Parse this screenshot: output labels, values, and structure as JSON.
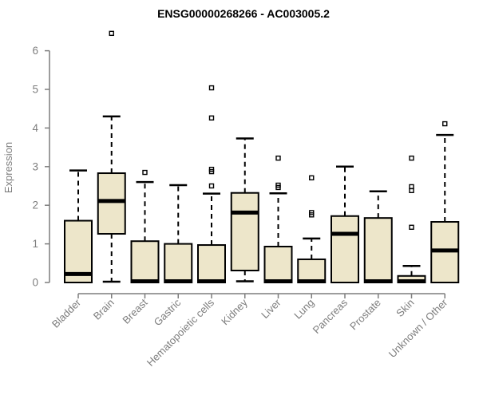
{
  "colors": {
    "box_fill": "#EDE6CA",
    "box_stroke": "#000000",
    "median": "#000000",
    "axis": "#7d7d7d",
    "tick_label": "#7d7d7d",
    "title": "#000000",
    "background": "#ffffff"
  },
  "chart_data": {
    "type": "boxplot",
    "title": "ENSG00000268266 - AC003005.2",
    "xlabel": "",
    "ylabel": "Expression",
    "ylim": [
      0,
      6
    ],
    "yticks": [
      0,
      1,
      2,
      3,
      4,
      5,
      6
    ],
    "grid": false,
    "legend": false,
    "categories": [
      "Bladder",
      "Brain",
      "Breast",
      "Gastric",
      "Hematopoietic cells",
      "Kidney",
      "Liver",
      "Lung",
      "Pancreas",
      "Prostate",
      "Skin",
      "Unknown / Other"
    ],
    "series": [
      {
        "name": "Bladder",
        "q1": 0,
        "median": 0.22,
        "q3": 1.6,
        "whisker_low": 0,
        "whisker_high": 2.9,
        "outliers": []
      },
      {
        "name": "Brain",
        "q1": 1.26,
        "median": 2.11,
        "q3": 2.83,
        "whisker_low": 0.02,
        "whisker_high": 4.3,
        "outliers": [
          6.45
        ]
      },
      {
        "name": "Breast",
        "q1": 0,
        "median": 0.03,
        "q3": 1.07,
        "whisker_low": 0,
        "whisker_high": 2.6,
        "outliers": [
          2.85
        ]
      },
      {
        "name": "Gastric",
        "q1": 0,
        "median": 0.03,
        "q3": 1.0,
        "whisker_low": 0,
        "whisker_high": 2.52,
        "outliers": []
      },
      {
        "name": "Hematopoietic cells",
        "q1": 0,
        "median": 0.03,
        "q3": 0.97,
        "whisker_low": 0,
        "whisker_high": 2.3,
        "outliers": [
          2.5,
          2.87,
          2.93,
          4.26,
          5.04
        ]
      },
      {
        "name": "Kidney",
        "q1": 0.31,
        "median": 1.81,
        "q3": 2.32,
        "whisker_low": 0.03,
        "whisker_high": 3.73,
        "outliers": []
      },
      {
        "name": "Liver",
        "q1": 0,
        "median": 0.03,
        "q3": 0.93,
        "whisker_low": 0,
        "whisker_high": 2.31,
        "outliers": [
          2.46,
          2.52,
          3.22
        ]
      },
      {
        "name": "Lung",
        "q1": 0,
        "median": 0.03,
        "q3": 0.6,
        "whisker_low": 0,
        "whisker_high": 1.14,
        "outliers": [
          1.75,
          1.81,
          2.71
        ]
      },
      {
        "name": "Pancreas",
        "q1": 0,
        "median": 1.26,
        "q3": 1.72,
        "whisker_low": 0,
        "whisker_high": 3.0,
        "outliers": []
      },
      {
        "name": "Prostate",
        "q1": 0,
        "median": 0.03,
        "q3": 1.67,
        "whisker_low": 0,
        "whisker_high": 2.36,
        "outliers": []
      },
      {
        "name": "Skin",
        "q1": 0,
        "median": 0.03,
        "q3": 0.17,
        "whisker_low": 0,
        "whisker_high": 0.43,
        "outliers": [
          1.43,
          2.38,
          2.48,
          3.22
        ]
      },
      {
        "name": "Unknown / Other",
        "q1": 0,
        "median": 0.83,
        "q3": 1.57,
        "whisker_low": 0,
        "whisker_high": 3.82,
        "outliers": [
          4.11
        ]
      }
    ]
  }
}
